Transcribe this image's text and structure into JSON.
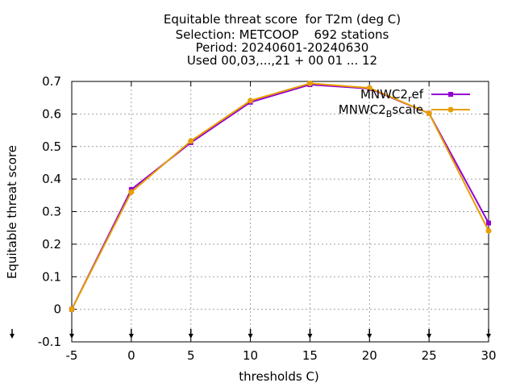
{
  "chart_data": {
    "type": "line",
    "title_lines": [
      "Equitable threat score  for T2m (deg C)",
      "Selection: METCOOP    692 stations",
      "Period: 20240601-20240630",
      "Used 00,03,...,21 + 00 01 ... 12"
    ],
    "xlabel": "thresholds C)",
    "ylabel": "Equitable threat score",
    "x": [
      -5,
      0,
      5,
      10,
      15,
      20,
      25,
      30
    ],
    "xlim": [
      -5,
      30
    ],
    "ylim": [
      -0.1,
      0.7
    ],
    "xticks": [
      "-5",
      "0",
      "5",
      "10",
      "15",
      "20",
      "25",
      "30"
    ],
    "yticks": [
      "-0.1",
      "0",
      "0.1",
      "0.2",
      "0.3",
      "0.4",
      "0.5",
      "0.6",
      "0.7"
    ],
    "grid": true,
    "legend_position": "top-right",
    "series": [
      {
        "name": "MNWC2_ref",
        "legend_main": "MNWC2",
        "legend_sub": "r",
        "legend_tail": "ef",
        "color": "#9400d3",
        "values": [
          0.0,
          0.368,
          0.512,
          0.636,
          0.69,
          0.678,
          0.602,
          0.265
        ]
      },
      {
        "name": "MNWC2_Bscale",
        "legend_main": "MNWC2",
        "legend_sub": "B",
        "legend_tail": "scale",
        "color": "#e69f00",
        "values": [
          0.0,
          0.36,
          0.517,
          0.641,
          0.694,
          0.68,
          0.602,
          0.241
        ]
      }
    ]
  }
}
